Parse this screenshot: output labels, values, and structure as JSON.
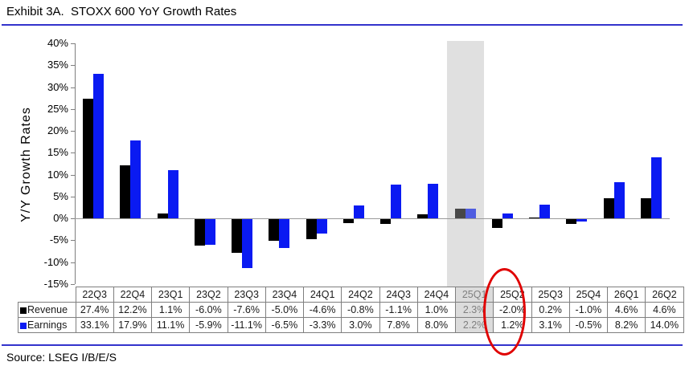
{
  "title": "Exhibit 3A.  STOXX 600 YoY Growth Rates",
  "source": "Source: LSEG I/B/E/S",
  "accent": {
    "rule_blue": "#3333cc",
    "circle_red": "#e00000"
  },
  "chart_data": {
    "type": "bar",
    "title": "Exhibit 3A.  STOXX 600 YoY Growth Rates",
    "ylabel": "Y/Y Growth Rates",
    "ylim": [
      -15,
      40
    ],
    "ytick_values": [
      40,
      35,
      30,
      25,
      20,
      15,
      10,
      5,
      0,
      -5,
      -10,
      -15
    ],
    "ytick_suffix": "%",
    "grid": false,
    "legend_position": "table-left",
    "categories": [
      "22Q3",
      "22Q4",
      "23Q1",
      "23Q2",
      "23Q3",
      "23Q4",
      "24Q1",
      "24Q2",
      "24Q3",
      "24Q4",
      "25Q1",
      "25Q2",
      "25Q3",
      "25Q4",
      "26Q1",
      "26Q2"
    ],
    "series": [
      {
        "name": "Revenue",
        "color": "#000000",
        "muted_color": "#474747",
        "values": [
          27.4,
          12.2,
          1.1,
          -6.0,
          -7.6,
          -5.0,
          -4.6,
          -0.8,
          -1.1,
          1.0,
          2.3,
          -2.0,
          0.2,
          -1.0,
          4.6,
          4.6
        ]
      },
      {
        "name": "Earnings",
        "color": "#0a1af2",
        "muted_color": "#4f5de0",
        "values": [
          33.1,
          17.9,
          11.1,
          -5.9,
          -11.1,
          -6.5,
          -3.3,
          3.0,
          7.8,
          8.0,
          2.2,
          1.2,
          3.1,
          -0.5,
          8.2,
          14.0
        ]
      }
    ],
    "highlighted_category": "25Q1",
    "highlight_band_color": "#e0e0e0",
    "highlight_cell_bg": "#dcdcdc",
    "highlight_cell_text": "#7f7f7f",
    "circled_category": "25Q2"
  }
}
